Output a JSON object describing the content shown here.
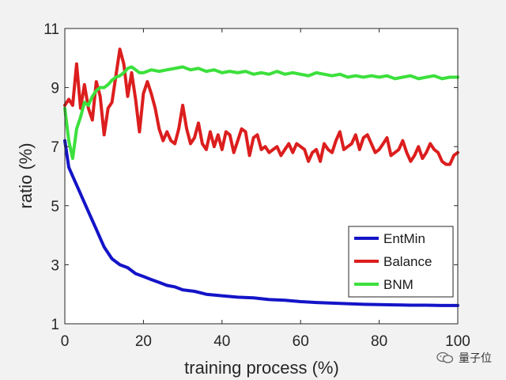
{
  "chart_data": {
    "type": "line",
    "xlabel": "training process (%)",
    "ylabel": "ratio (%)",
    "xlim": [
      0,
      100
    ],
    "ylim": [
      1,
      11
    ],
    "xticks": [
      0,
      20,
      40,
      60,
      80,
      100
    ],
    "yticks": [
      1,
      3,
      5,
      7,
      9,
      11
    ],
    "legend_position": "bottom-right",
    "series": [
      {
        "name": "EntMin",
        "color": "#1414c8",
        "x": [
          0,
          1,
          2,
          3,
          4,
          5,
          6,
          7,
          8,
          9,
          10,
          12,
          14,
          16,
          18,
          20,
          22,
          24,
          26,
          28,
          30,
          33,
          36,
          40,
          44,
          48,
          52,
          56,
          60,
          64,
          68,
          72,
          76,
          80,
          84,
          88,
          92,
          96,
          100
        ],
        "y": [
          7.2,
          6.3,
          6.0,
          5.7,
          5.4,
          5.1,
          4.8,
          4.5,
          4.2,
          3.9,
          3.6,
          3.2,
          3.0,
          2.9,
          2.7,
          2.6,
          2.5,
          2.4,
          2.3,
          2.25,
          2.15,
          2.1,
          2.0,
          1.95,
          1.9,
          1.88,
          1.82,
          1.8,
          1.75,
          1.72,
          1.7,
          1.68,
          1.66,
          1.65,
          1.64,
          1.63,
          1.63,
          1.62,
          1.62
        ]
      },
      {
        "name": "Balance",
        "color": "#dc1e1e",
        "x": [
          0,
          1,
          2,
          3,
          4,
          5,
          6,
          7,
          8,
          9,
          10,
          11,
          12,
          13,
          14,
          15,
          16,
          17,
          18,
          19,
          20,
          21,
          22,
          23,
          24,
          25,
          26,
          27,
          28,
          29,
          30,
          31,
          32,
          33,
          34,
          35,
          36,
          37,
          38,
          39,
          40,
          41,
          42,
          43,
          44,
          45,
          46,
          47,
          48,
          49,
          50,
          51,
          52,
          53,
          54,
          55,
          56,
          57,
          58,
          59,
          60,
          61,
          62,
          63,
          64,
          65,
          66,
          67,
          68,
          69,
          70,
          71,
          72,
          73,
          74,
          75,
          76,
          77,
          78,
          79,
          80,
          81,
          82,
          83,
          84,
          85,
          86,
          87,
          88,
          89,
          90,
          91,
          92,
          93,
          94,
          95,
          96,
          97,
          98,
          99,
          100
        ],
        "y": [
          8.4,
          8.6,
          8.4,
          9.8,
          8.3,
          9.1,
          8.3,
          7.9,
          9.2,
          8.7,
          7.4,
          8.3,
          8.5,
          9.4,
          10.3,
          9.8,
          8.7,
          9.5,
          8.6,
          7.5,
          8.8,
          9.2,
          8.8,
          8.3,
          7.6,
          7.2,
          7.5,
          7.2,
          7.1,
          7.6,
          8.4,
          7.6,
          7.1,
          7.3,
          7.8,
          7.1,
          6.9,
          7.5,
          7.0,
          7.4,
          6.9,
          7.5,
          7.4,
          6.8,
          7.2,
          7.6,
          7.5,
          6.7,
          7.3,
          7.4,
          6.9,
          7.0,
          6.8,
          6.9,
          7.0,
          6.7,
          6.9,
          7.1,
          6.8,
          7.1,
          7.0,
          6.9,
          6.5,
          6.8,
          6.9,
          6.5,
          7.1,
          6.9,
          6.8,
          7.2,
          7.5,
          6.9,
          7.0,
          7.1,
          7.4,
          6.9,
          7.3,
          7.4,
          7.1,
          6.8,
          6.9,
          7.1,
          7.3,
          6.7,
          6.8,
          6.9,
          7.2,
          6.8,
          6.5,
          6.7,
          7.0,
          6.6,
          6.8,
          7.1,
          6.9,
          6.8,
          6.5,
          6.4,
          6.4,
          6.7,
          6.8
        ]
      },
      {
        "name": "BNM",
        "color": "#3ce03c",
        "x": [
          0,
          1,
          2,
          3,
          4,
          5,
          6,
          7,
          8,
          9,
          10,
          11,
          12,
          13,
          14,
          15,
          16,
          17,
          18,
          19,
          20,
          22,
          24,
          26,
          28,
          30,
          32,
          34,
          36,
          38,
          40,
          42,
          44,
          46,
          48,
          50,
          52,
          54,
          56,
          58,
          60,
          62,
          64,
          66,
          68,
          70,
          72,
          74,
          76,
          78,
          80,
          82,
          84,
          86,
          88,
          90,
          92,
          94,
          96,
          98,
          100
        ],
        "y": [
          8.3,
          7.2,
          6.6,
          7.6,
          8.0,
          8.5,
          8.4,
          8.7,
          8.9,
          9.0,
          9.0,
          9.1,
          9.25,
          9.35,
          9.4,
          9.5,
          9.65,
          9.7,
          9.6,
          9.5,
          9.5,
          9.6,
          9.55,
          9.6,
          9.65,
          9.7,
          9.6,
          9.65,
          9.55,
          9.6,
          9.5,
          9.55,
          9.5,
          9.55,
          9.45,
          9.5,
          9.45,
          9.55,
          9.45,
          9.5,
          9.45,
          9.4,
          9.5,
          9.45,
          9.4,
          9.45,
          9.35,
          9.4,
          9.35,
          9.4,
          9.35,
          9.4,
          9.3,
          9.35,
          9.4,
          9.3,
          9.35,
          9.4,
          9.3,
          9.35,
          9.35
        ]
      }
    ]
  },
  "watermark": {
    "icon": "wechat-bubble-icon",
    "text": "量子位"
  }
}
